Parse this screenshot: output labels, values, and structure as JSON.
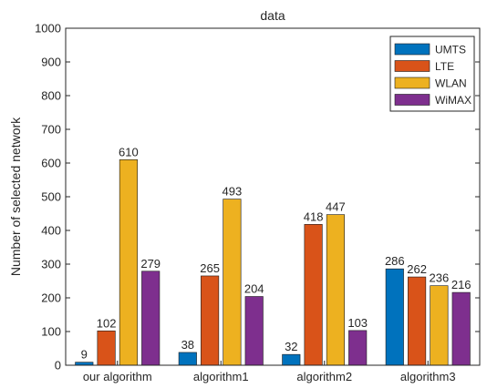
{
  "chart_data": {
    "type": "bar",
    "title": "data",
    "xlabel": "",
    "ylabel": "Number of selected network",
    "ylim": [
      0,
      1000
    ],
    "yticks": [
      0,
      100,
      200,
      300,
      400,
      500,
      600,
      700,
      800,
      900,
      1000
    ],
    "categories": [
      "our algorithm",
      "algorithm1",
      "algorithm2",
      "algorithm3"
    ],
    "series": [
      {
        "name": "UMTS",
        "color": "#0072BD",
        "values": [
          9,
          38,
          32,
          286
        ]
      },
      {
        "name": "LTE",
        "color": "#D95319",
        "values": [
          102,
          265,
          418,
          262
        ]
      },
      {
        "name": "WLAN",
        "color": "#EDB120",
        "values": [
          610,
          493,
          447,
          236
        ]
      },
      {
        "name": "WiMAX",
        "color": "#7E2F8E",
        "values": [
          279,
          204,
          103,
          216
        ]
      }
    ],
    "grid": false,
    "legend_position": "top-right"
  }
}
